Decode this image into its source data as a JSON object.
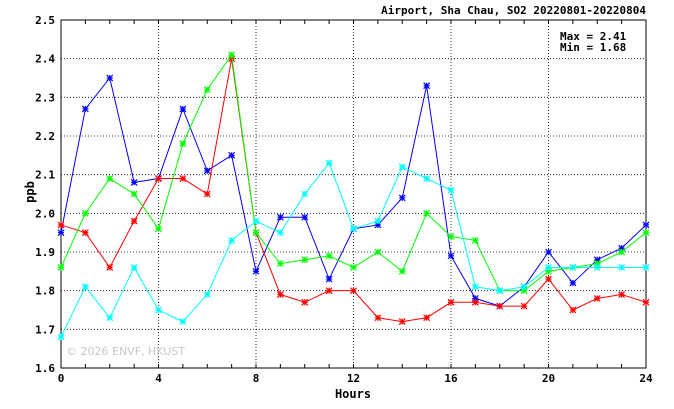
{
  "chart_data": {
    "type": "line",
    "title": "Airport, Sha Chau, SO2 20220801-20220804",
    "xlabel": "Hours",
    "ylabel": "ppb",
    "xlim": [
      0,
      24
    ],
    "ylim": [
      1.6,
      2.5
    ],
    "xticks": [
      0,
      4,
      8,
      12,
      16,
      20,
      24
    ],
    "yticks": [
      1.6,
      1.7,
      1.8,
      1.9,
      2.0,
      2.1,
      2.2,
      2.3,
      2.4,
      2.5
    ],
    "grid": true,
    "stats": {
      "max_label": "Max = 2.41",
      "min_label": "Min = 1.68"
    },
    "watermark": "© 2026 ENVF, HKUST",
    "x": [
      0,
      1,
      2,
      3,
      4,
      5,
      6,
      7,
      8,
      9,
      10,
      11,
      12,
      13,
      14,
      15,
      16,
      17,
      18,
      19,
      20,
      21,
      22,
      23,
      24
    ],
    "series": [
      {
        "color": "#0000ff",
        "values": [
          1.95,
          2.27,
          2.35,
          2.08,
          2.09,
          2.27,
          2.11,
          2.15,
          1.85,
          1.99,
          1.99,
          1.83,
          1.96,
          1.97,
          2.04,
          2.33,
          1.89,
          1.78,
          1.76,
          1.81,
          1.9,
          1.82,
          1.88,
          1.91,
          1.97
        ]
      },
      {
        "color": "#ff0000",
        "values": [
          1.97,
          1.95,
          1.86,
          1.98,
          2.09,
          2.09,
          2.05,
          2.4,
          1.95,
          1.79,
          1.77,
          1.8,
          1.8,
          1.73,
          1.72,
          1.73,
          1.77,
          1.77,
          1.76,
          1.76,
          1.83,
          1.75,
          1.78,
          1.79,
          1.77
        ]
      },
      {
        "color": "#00ff00",
        "values": [
          1.86,
          2.0,
          2.09,
          2.05,
          1.96,
          2.18,
          2.32,
          2.41,
          1.95,
          1.87,
          1.88,
          1.89,
          1.86,
          1.9,
          1.85,
          2.0,
          1.94,
          1.93,
          1.8,
          1.8,
          1.85,
          1.86,
          1.87,
          1.9,
          1.95
        ]
      },
      {
        "color": "#00ffff",
        "values": [
          1.68,
          1.81,
          1.73,
          1.86,
          1.75,
          1.72,
          1.79,
          1.93,
          1.98,
          1.95,
          2.05,
          2.13,
          1.96,
          1.98,
          2.12,
          2.09,
          2.06,
          1.81,
          1.8,
          1.81,
          1.86,
          1.86,
          1.86,
          1.86,
          1.86
        ]
      }
    ]
  }
}
